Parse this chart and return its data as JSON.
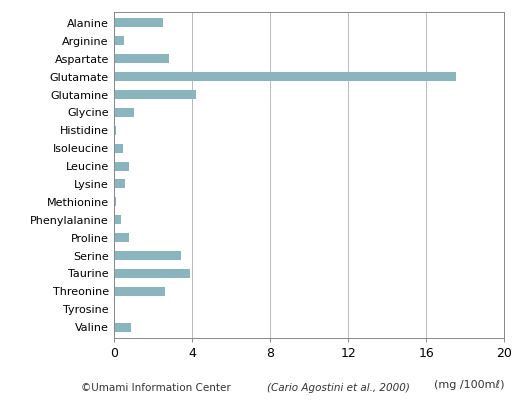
{
  "categories": [
    "Alanine",
    "Arginine",
    "Aspartate",
    "Glutamate",
    "Glutamine",
    "Glycine",
    "Histidine",
    "Isoleucine",
    "Leucine",
    "Lysine",
    "Methionine",
    "Phenylalanine",
    "Proline",
    "Serine",
    "Taurine",
    "Threonine",
    "Tyrosine",
    "Valine"
  ],
  "values": [
    2.5,
    0.5,
    2.8,
    17.5,
    4.2,
    1.0,
    0.1,
    0.45,
    0.75,
    0.55,
    0.1,
    0.35,
    0.75,
    3.4,
    3.9,
    2.6,
    0.02,
    0.85
  ],
  "bar_color": "#8ab5bf",
  "xlim": [
    0,
    20
  ],
  "xticks": [
    0,
    4,
    8,
    12,
    16,
    20
  ],
  "xlabel": "(mg /100mℓ)",
  "background_color": "#ffffff",
  "grid_color": "#b0b0b0",
  "footer_left": "©Umami Information Center",
  "footer_right": "(Cario Agostini et al., 2000)"
}
